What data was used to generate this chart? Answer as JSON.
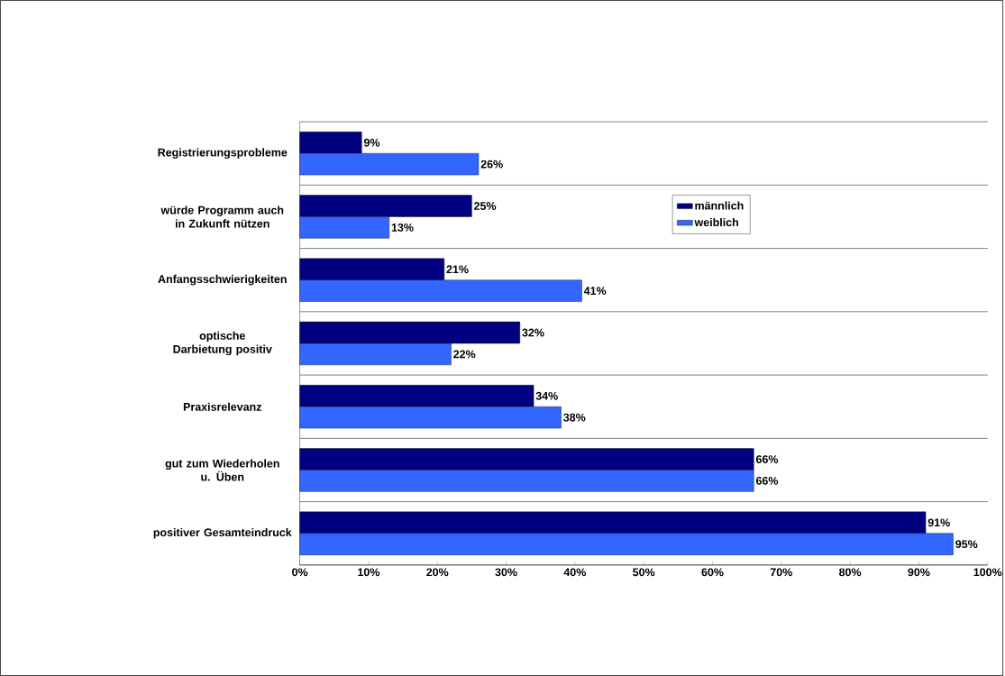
{
  "chart_data": {
    "type": "bar",
    "orientation": "horizontal",
    "categories": [
      "Registrierungsprobleme",
      "würde Programm auch in Zukunft nützen",
      "Anfangsschwierigkeiten",
      "optische Darbietung positiv",
      "Praxisrelevanz",
      "gut zum Wiederholen u. Üben",
      "positiver Gesamteindruck"
    ],
    "series": [
      {
        "name": "männlich",
        "color": "#000080",
        "values": [
          9,
          25,
          21,
          32,
          34,
          66,
          91
        ],
        "value_labels": [
          "9%",
          "25%",
          "21%",
          "32%",
          "34%",
          "66%",
          "91%"
        ]
      },
      {
        "name": "weiblich",
        "color": "#3366ff",
        "values": [
          26,
          13,
          41,
          22,
          38,
          66,
          95
        ],
        "value_labels": [
          "26%",
          "13%",
          "41%",
          "22%",
          "38%",
          "66%",
          "95%"
        ]
      }
    ],
    "xlim": [
      0,
      100
    ],
    "xticks": [
      {
        "value": 0,
        "label": "0%"
      },
      {
        "value": 10,
        "label": "10%"
      },
      {
        "value": 20,
        "label": "20%"
      },
      {
        "value": 30,
        "label": "30%"
      },
      {
        "value": 40,
        "label": "40%"
      },
      {
        "value": 50,
        "label": "50%"
      },
      {
        "value": 60,
        "label": "60%"
      },
      {
        "value": 70,
        "label": "70%"
      },
      {
        "value": 80,
        "label": "80%"
      },
      {
        "value": 90,
        "label": "90%"
      },
      {
        "value": 100,
        "label": "100%"
      }
    ],
    "grid": "y",
    "legend": "top right"
  }
}
